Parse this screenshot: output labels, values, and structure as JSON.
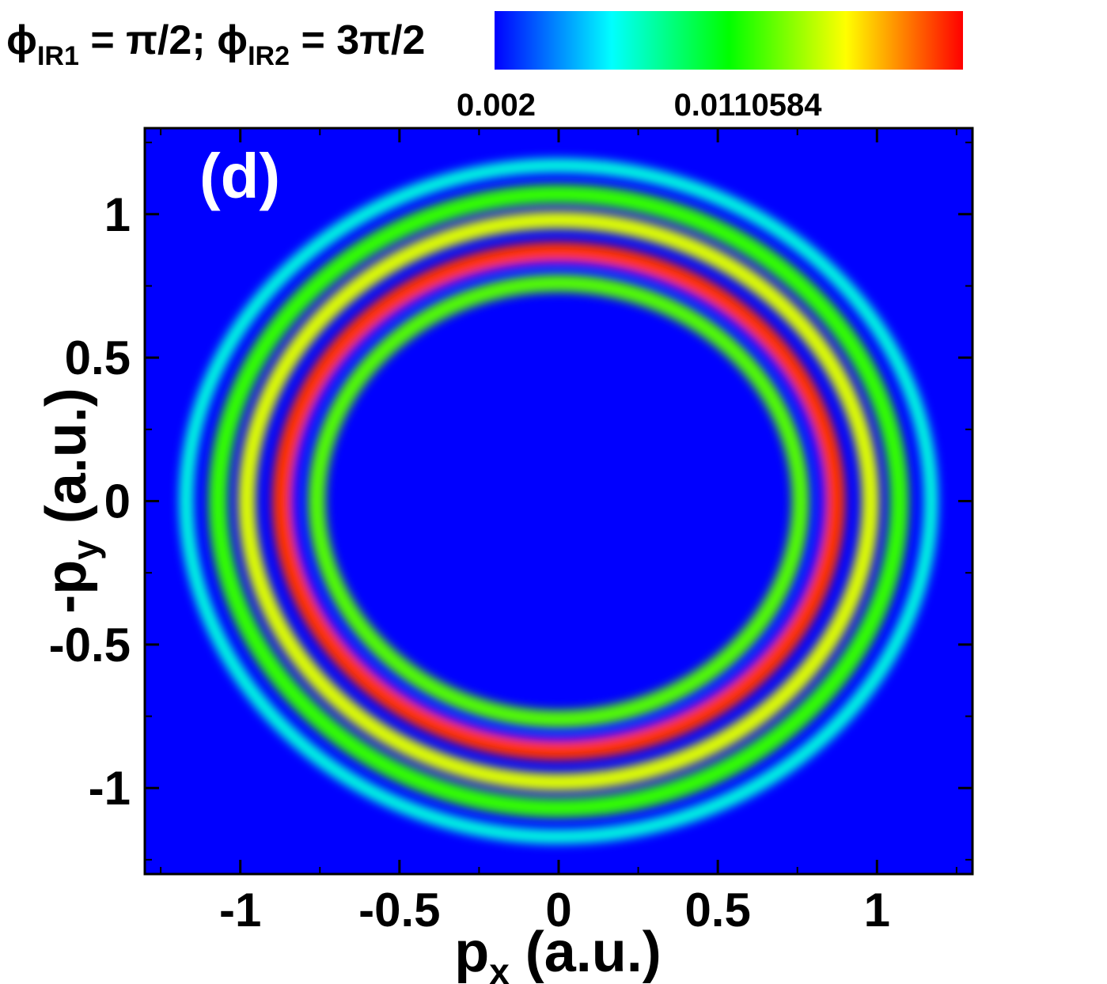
{
  "chart_data": {
    "type": "heatmap",
    "panel_label": "(d)",
    "title": {
      "phi": "ϕ",
      "sub1": "IR1",
      "part1": " = π/2; ",
      "sub2": "IR2",
      "part2": " = 3π/2"
    },
    "xlabel": {
      "base": "p",
      "sub": "x",
      "units": " (a.u.)"
    },
    "ylabel": {
      "prefix": "-p",
      "sub": "y",
      "units": " (a.u.)"
    },
    "xlim": [
      -1.3,
      1.3
    ],
    "ylim": [
      -1.3,
      1.3
    ],
    "xticks": [
      {
        "value": -1,
        "label": "-1"
      },
      {
        "value": -0.5,
        "label": "-0.5"
      },
      {
        "value": 0,
        "label": "0"
      },
      {
        "value": 0.5,
        "label": "0.5"
      },
      {
        "value": 1,
        "label": "1"
      }
    ],
    "yticks": [
      {
        "value": 1,
        "label": "1"
      },
      {
        "value": 0.5,
        "label": "0.5"
      },
      {
        "value": 0,
        "label": "0"
      },
      {
        "value": -0.5,
        "label": "-0.5"
      },
      {
        "value": -1,
        "label": "-1"
      }
    ],
    "minor_tick_step": 0.25,
    "colorbar": {
      "labels": [
        "0.002",
        "0.0110584"
      ],
      "stops": [
        "#0000ff",
        "#00ffff",
        "#00ff00",
        "#ffff00",
        "#ff0000"
      ]
    },
    "background_color": "#0000ff",
    "rings": [
      {
        "radius": 1.17,
        "width": 0.045,
        "level": 0.28
      },
      {
        "radius": 1.07,
        "width": 0.06,
        "level": 0.55
      },
      {
        "radius": 0.98,
        "width": 0.055,
        "level": 0.72
      },
      {
        "radius": 0.87,
        "width": 0.06,
        "level": 0.95
      },
      {
        "radius": 0.83,
        "width": 0.012,
        "level": 0.0
      },
      {
        "radius": 0.76,
        "width": 0.055,
        "level": 0.58
      }
    ],
    "grid": false,
    "legend": "none"
  }
}
